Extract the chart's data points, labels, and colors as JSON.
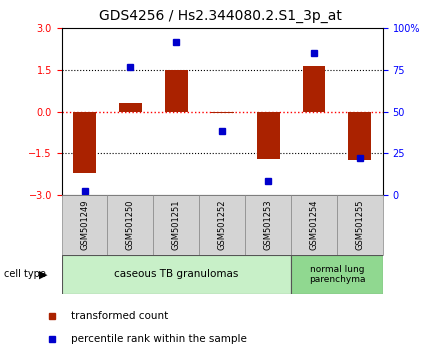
{
  "title": "GDS4256 / Hs2.344080.2.S1_3p_at",
  "samples": [
    "GSM501249",
    "GSM501250",
    "GSM501251",
    "GSM501252",
    "GSM501253",
    "GSM501254",
    "GSM501255"
  ],
  "red_values": [
    -2.2,
    0.3,
    1.5,
    -0.05,
    -1.7,
    1.65,
    -1.75
  ],
  "blue_values": [
    2,
    77,
    92,
    38,
    8,
    85,
    22
  ],
  "ylim_left": [
    -3,
    3
  ],
  "ylim_right": [
    0,
    100
  ],
  "yticks_left": [
    -3,
    -1.5,
    0,
    1.5,
    3
  ],
  "yticks_right": [
    0,
    25,
    50,
    75,
    100
  ],
  "ytick_labels_right": [
    "0",
    "25",
    "50",
    "75",
    "100%"
  ],
  "group1_label": "caseous TB granulomas",
  "group1_count": 5,
  "group2_label": "normal lung\nparenchyma",
  "group2_count": 2,
  "cell_type_label": "cell type",
  "legend1_label": "transformed count",
  "legend2_label": "percentile rank within the sample",
  "red_color": "#aa2200",
  "blue_color": "#0000cc",
  "bar_width": 0.5,
  "group1_bg": "#c8f0c8",
  "group2_bg": "#90d890",
  "sample_bg": "#d4d4d4",
  "title_fontsize": 10,
  "tick_fontsize": 7,
  "label_fontsize": 8
}
